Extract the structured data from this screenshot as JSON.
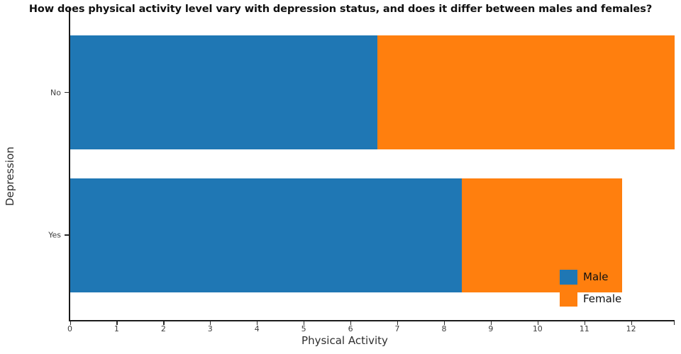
{
  "chart_data": {
    "type": "bar",
    "orientation": "horizontal",
    "stacked": true,
    "title": "How does physical activity level vary with depression status, and does it differ between males and females?",
    "xlabel": "Physical Activity",
    "ylabel": "Depression",
    "categories": [
      "No",
      "Yes"
    ],
    "series": [
      {
        "name": "Male",
        "color": "#1f77b4",
        "values": [
          6.57,
          8.38
        ]
      },
      {
        "name": "Female",
        "color": "#ff7f0e",
        "values": [
          6.36,
          3.43
        ]
      }
    ],
    "stack_totals": [
      12.93,
      11.81
    ],
    "xlim": [
      0,
      12.93
    ],
    "xticks": [
      0,
      1,
      2,
      3,
      4,
      5,
      6,
      7,
      8,
      9,
      10,
      11,
      12
    ],
    "grid": false,
    "legend_position": "lower-right"
  },
  "colors": {
    "axis_line": "#1a1a1a",
    "tick_label": "#3d3d3d",
    "axis_label": "#2e2e2e",
    "title_text": "#111111"
  }
}
